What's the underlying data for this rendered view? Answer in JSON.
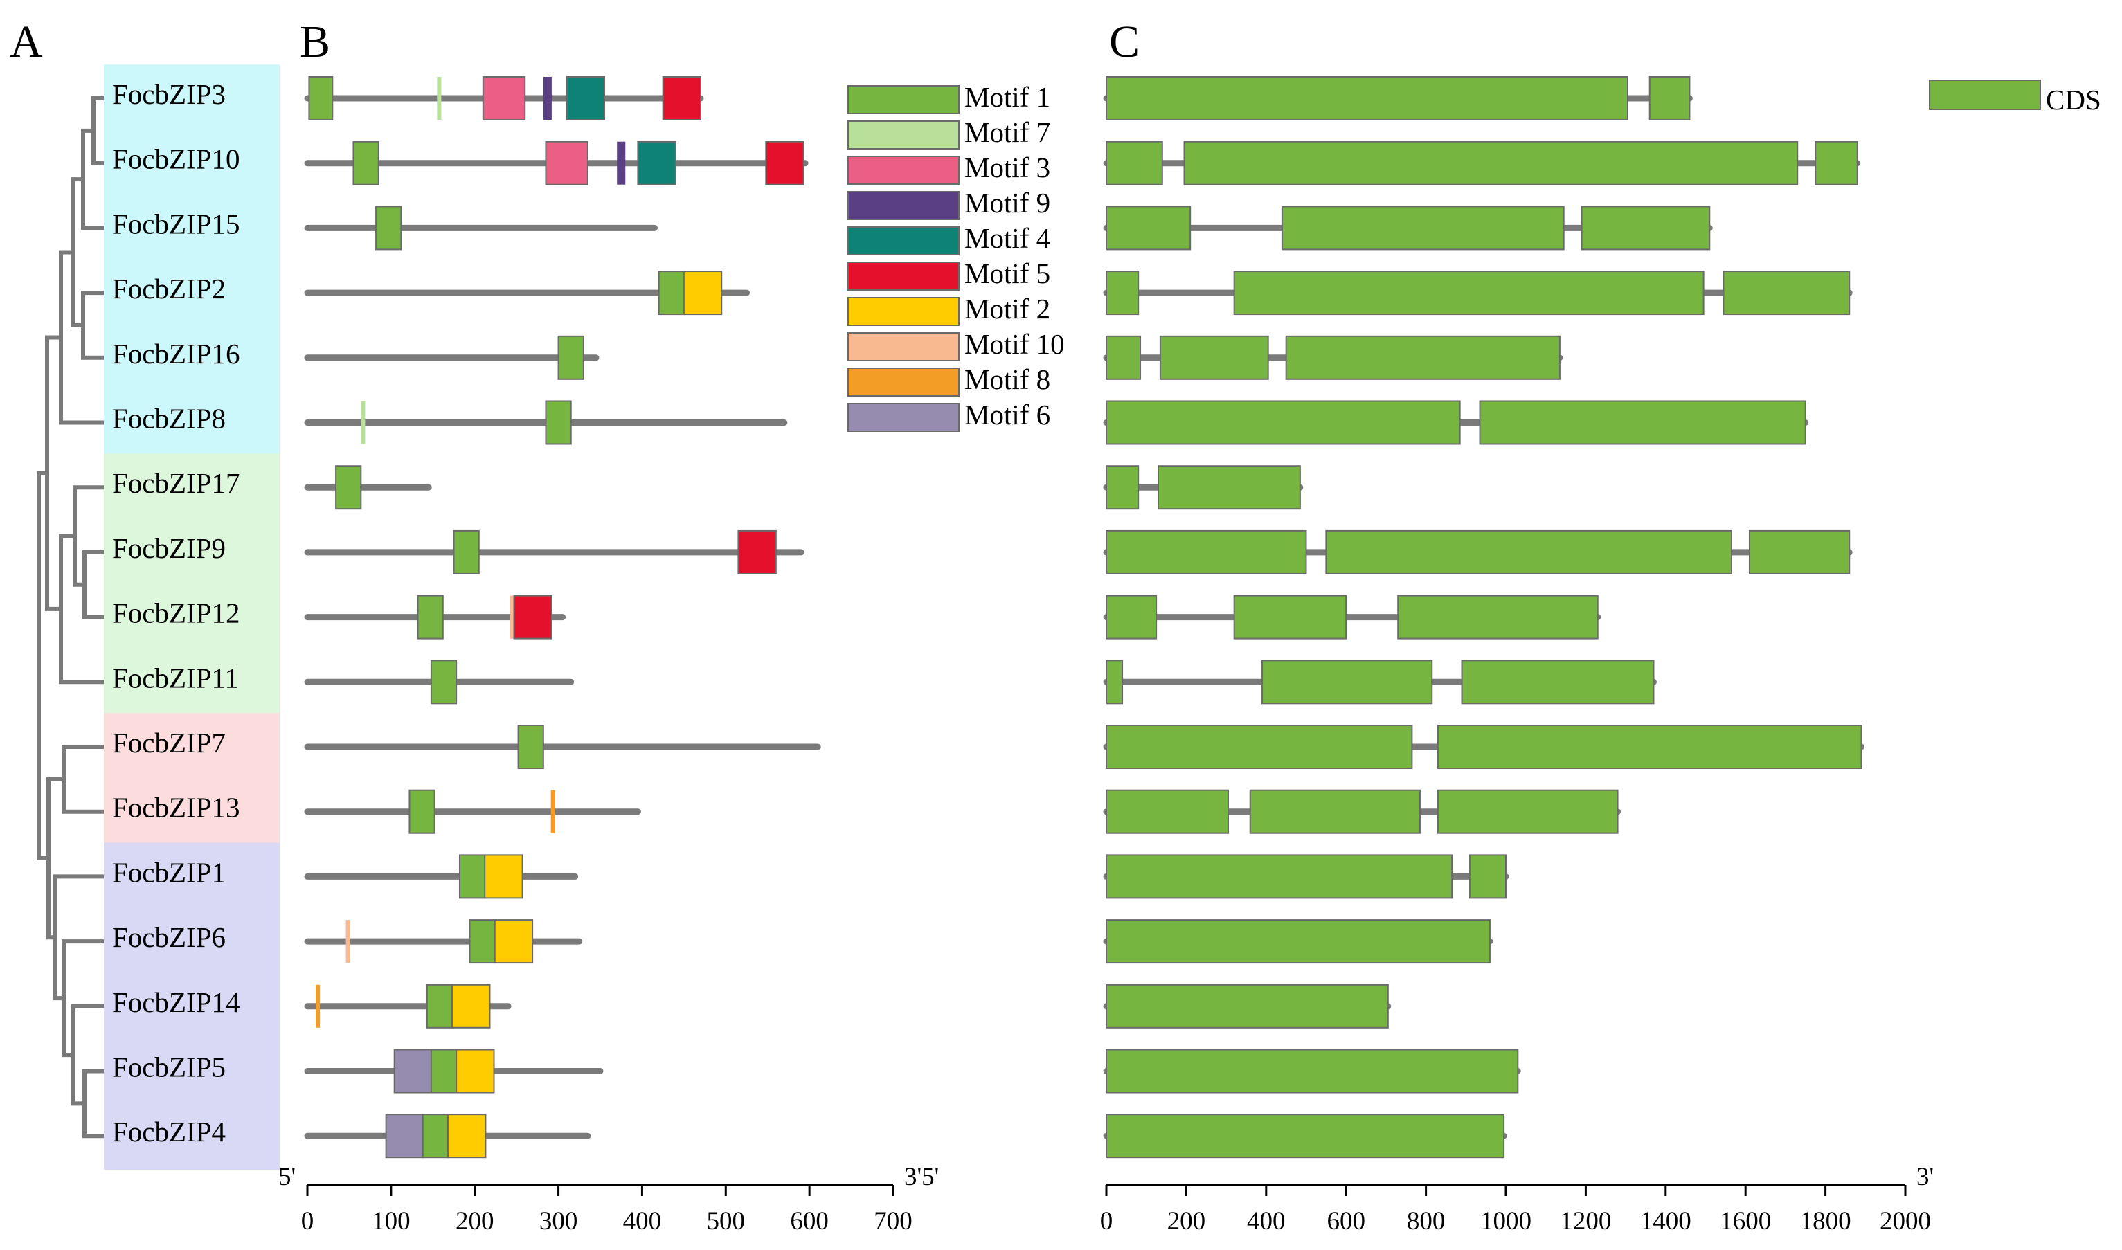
{
  "panels": {
    "a": "A",
    "b": "B",
    "c": "C"
  },
  "genes": [
    "FocbZIP3",
    "FocbZIP10",
    "FocbZIP15",
    "FocbZIP2",
    "FocbZIP16",
    "FocbZIP8",
    "FocbZIP17",
    "FocbZIP9",
    "FocbZIP12",
    "FocbZIP11",
    "FocbZIP7",
    "FocbZIP13",
    "FocbZIP1",
    "FocbZIP6",
    "FocbZIP14",
    "FocbZIP5",
    "FocbZIP4"
  ],
  "groups": [
    {
      "start": 0,
      "end": 5,
      "color": "#cdf8fb"
    },
    {
      "start": 6,
      "end": 9,
      "color": "#dcf7dc"
    },
    {
      "start": 10,
      "end": 11,
      "color": "#fcdcdc"
    },
    {
      "start": 12,
      "end": 16,
      "color": "#d9d9f5"
    }
  ],
  "colors": {
    "backbone": "#7a7a7a",
    "tree": "#7a7a7a",
    "cds": "#76b540",
    "box_stroke": "#6a6a6a"
  },
  "motif_legend": [
    {
      "id": 1,
      "label": "Motif 1",
      "color": "#76b540"
    },
    {
      "id": 7,
      "label": "Motif 7",
      "color": "#b8e09a"
    },
    {
      "id": 3,
      "label": "Motif 3",
      "color": "#ec5f85"
    },
    {
      "id": 9,
      "label": "Motif 9",
      "color": "#5a3f84"
    },
    {
      "id": 4,
      "label": "Motif 4",
      "color": "#0f8276"
    },
    {
      "id": 5,
      "label": "Motif 5",
      "color": "#e5102a"
    },
    {
      "id": 2,
      "label": "Motif 2",
      "color": "#ffcc00"
    },
    {
      "id": 10,
      "label": "Motif 10",
      "color": "#f8b890"
    },
    {
      "id": 8,
      "label": "Motif 8",
      "color": "#f39c26"
    },
    {
      "id": 6,
      "label": "Motif 6",
      "color": "#968cb0"
    }
  ],
  "motif_axis": {
    "min": 0,
    "max": 700,
    "ticks": [
      0,
      100,
      200,
      300,
      400,
      500,
      600,
      700
    ],
    "left_label": "5'",
    "right_label": "3'5'"
  },
  "proteins": [
    {
      "length": 470,
      "motifs": [
        {
          "id": 1,
          "start": 2,
          "end": 30
        },
        {
          "id": 7,
          "start": 155,
          "end": 160
        },
        {
          "id": 3,
          "start": 210,
          "end": 260
        },
        {
          "id": 9,
          "start": 282,
          "end": 292
        },
        {
          "id": 4,
          "start": 310,
          "end": 355
        },
        {
          "id": 5,
          "start": 425,
          "end": 470
        }
      ]
    },
    {
      "length": 595,
      "motifs": [
        {
          "id": 1,
          "start": 55,
          "end": 85
        },
        {
          "id": 3,
          "start": 285,
          "end": 335
        },
        {
          "id": 9,
          "start": 370,
          "end": 380
        },
        {
          "id": 4,
          "start": 395,
          "end": 440
        },
        {
          "id": 5,
          "start": 548,
          "end": 593
        }
      ]
    },
    {
      "length": 415,
      "motifs": [
        {
          "id": 1,
          "start": 82,
          "end": 112
        }
      ]
    },
    {
      "length": 525,
      "motifs": [
        {
          "id": 1,
          "start": 420,
          "end": 450
        },
        {
          "id": 2,
          "start": 450,
          "end": 495
        }
      ]
    },
    {
      "length": 345,
      "motifs": [
        {
          "id": 1,
          "start": 300,
          "end": 330
        }
      ]
    },
    {
      "length": 570,
      "motifs": [
        {
          "id": 7,
          "start": 64,
          "end": 69
        },
        {
          "id": 1,
          "start": 285,
          "end": 315
        }
      ]
    },
    {
      "length": 145,
      "motifs": [
        {
          "id": 1,
          "start": 34,
          "end": 64
        }
      ]
    },
    {
      "length": 590,
      "motifs": [
        {
          "id": 1,
          "start": 175,
          "end": 205
        },
        {
          "id": 5,
          "start": 515,
          "end": 560
        }
      ]
    },
    {
      "length": 305,
      "motifs": [
        {
          "id": 1,
          "start": 132,
          "end": 162
        },
        {
          "id": 10,
          "start": 242,
          "end": 247
        },
        {
          "id": 5,
          "start": 247,
          "end": 292
        }
      ]
    },
    {
      "length": 315,
      "motifs": [
        {
          "id": 1,
          "start": 148,
          "end": 178
        }
      ]
    },
    {
      "length": 610,
      "motifs": [
        {
          "id": 1,
          "start": 252,
          "end": 282
        }
      ]
    },
    {
      "length": 395,
      "motifs": [
        {
          "id": 1,
          "start": 122,
          "end": 152
        },
        {
          "id": 8,
          "start": 291,
          "end": 296
        }
      ]
    },
    {
      "length": 320,
      "motifs": [
        {
          "id": 1,
          "start": 182,
          "end": 212
        },
        {
          "id": 2,
          "start": 212,
          "end": 257
        }
      ]
    },
    {
      "length": 325,
      "motifs": [
        {
          "id": 10,
          "start": 46,
          "end": 51
        },
        {
          "id": 1,
          "start": 194,
          "end": 224
        },
        {
          "id": 2,
          "start": 224,
          "end": 269
        }
      ]
    },
    {
      "length": 240,
      "motifs": [
        {
          "id": 8,
          "start": 10,
          "end": 15
        },
        {
          "id": 1,
          "start": 143,
          "end": 173
        },
        {
          "id": 2,
          "start": 173,
          "end": 218
        }
      ]
    },
    {
      "length": 350,
      "motifs": [
        {
          "id": 6,
          "start": 104,
          "end": 148
        },
        {
          "id": 1,
          "start": 148,
          "end": 178
        },
        {
          "id": 2,
          "start": 178,
          "end": 223
        }
      ]
    },
    {
      "length": 335,
      "motifs": [
        {
          "id": 6,
          "start": 94,
          "end": 138
        },
        {
          "id": 1,
          "start": 138,
          "end": 168
        },
        {
          "id": 2,
          "start": 168,
          "end": 213
        }
      ]
    }
  ],
  "cds_legend": {
    "label": "CDS",
    "color": "#76b540"
  },
  "cds_axis": {
    "min": 0,
    "max": 2000,
    "ticks": [
      0,
      200,
      400,
      600,
      800,
      1000,
      1200,
      1400,
      1600,
      1800,
      2000
    ],
    "right_label": "3'"
  },
  "gene_structures": [
    {
      "length": 1460,
      "exons": [
        [
          0,
          1305
        ],
        [
          1360,
          1460
        ]
      ]
    },
    {
      "length": 1880,
      "exons": [
        [
          0,
          140
        ],
        [
          195,
          1730
        ],
        [
          1775,
          1880
        ]
      ]
    },
    {
      "length": 1510,
      "exons": [
        [
          0,
          210
        ],
        [
          440,
          1145
        ],
        [
          1190,
          1510
        ]
      ]
    },
    {
      "length": 1860,
      "exons": [
        [
          0,
          80
        ],
        [
          320,
          1495
        ],
        [
          1545,
          1860
        ]
      ]
    },
    {
      "length": 1135,
      "exons": [
        [
          0,
          85
        ],
        [
          135,
          405
        ],
        [
          450,
          1135
        ]
      ]
    },
    {
      "length": 1750,
      "exons": [
        [
          0,
          885
        ],
        [
          935,
          1750
        ]
      ]
    },
    {
      "length": 485,
      "exons": [
        [
          0,
          80
        ],
        [
          130,
          485
        ]
      ]
    },
    {
      "length": 1860,
      "exons": [
        [
          0,
          500
        ],
        [
          550,
          1565
        ],
        [
          1610,
          1860
        ]
      ]
    },
    {
      "length": 1230,
      "exons": [
        [
          0,
          125
        ],
        [
          320,
          600
        ],
        [
          730,
          1230
        ]
      ]
    },
    {
      "length": 1370,
      "exons": [
        [
          0,
          40
        ],
        [
          390,
          815
        ],
        [
          890,
          1370
        ]
      ]
    },
    {
      "length": 1890,
      "exons": [
        [
          0,
          765
        ],
        [
          830,
          1890
        ]
      ]
    },
    {
      "length": 1280,
      "exons": [
        [
          0,
          305
        ],
        [
          360,
          785
        ],
        [
          830,
          1280
        ]
      ]
    },
    {
      "length": 1000,
      "exons": [
        [
          0,
          865
        ],
        [
          910,
          1000
        ]
      ]
    },
    {
      "length": 960,
      "exons": [
        [
          0,
          960
        ]
      ]
    },
    {
      "length": 705,
      "exons": [
        [
          0,
          705
        ]
      ]
    },
    {
      "length": 1030,
      "exons": [
        [
          0,
          1030
        ]
      ]
    },
    {
      "length": 995,
      "exons": [
        [
          0,
          995
        ]
      ]
    }
  ]
}
